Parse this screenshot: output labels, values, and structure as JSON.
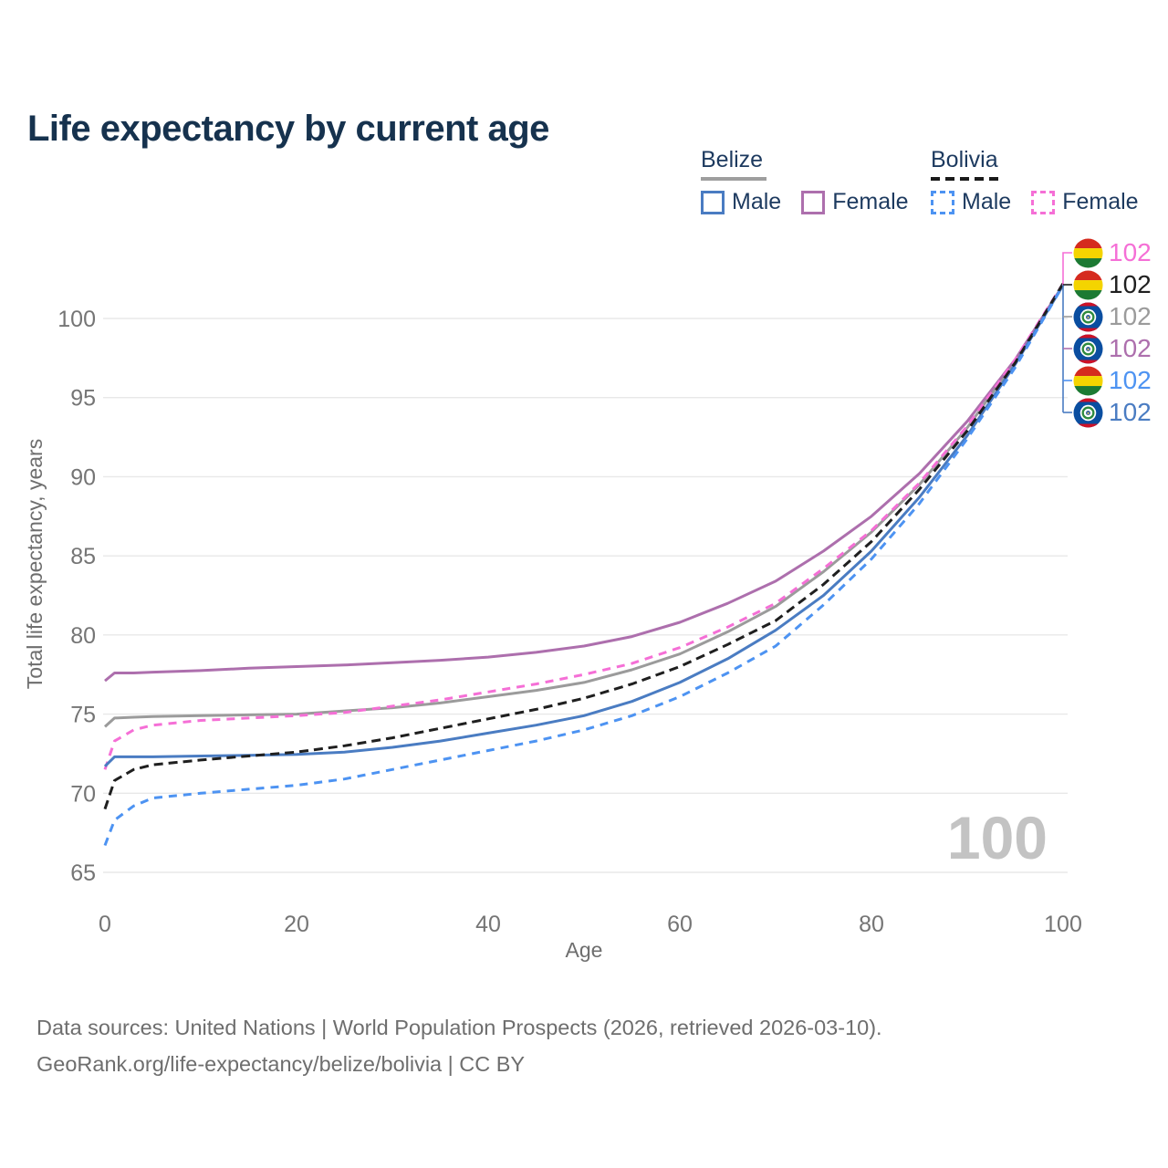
{
  "title": "Life expectancy by current age",
  "legend": {
    "groups": [
      {
        "country": "Belize",
        "underline": "solid",
        "items": [
          {
            "label": "Male",
            "series": "belize_male"
          },
          {
            "label": "Female",
            "series": "belize_female"
          }
        ]
      },
      {
        "country": "Bolivia",
        "underline": "dashed",
        "items": [
          {
            "label": "Male",
            "series": "bolivia_male"
          },
          {
            "label": "Female",
            "series": "bolivia_female"
          }
        ]
      }
    ]
  },
  "chart_data": {
    "type": "line",
    "title": "Life expectancy by current age",
    "xlabel": "Age",
    "ylabel": "Total life expectancy, years",
    "xlim": [
      0,
      100
    ],
    "ylim": [
      65,
      103
    ],
    "x_ticks": [
      0,
      20,
      40,
      60,
      80,
      100
    ],
    "y_ticks": [
      65,
      70,
      75,
      80,
      85,
      90,
      95,
      100
    ],
    "grid": "horizontal",
    "gridline_color": "#e8e8e8",
    "tick_label_color": "#757575",
    "axis_title_color": "#6e6e6e",
    "watermark": "100",
    "watermark_color": "#c3c3c3",
    "ages": [
      0,
      1,
      3,
      5,
      10,
      15,
      20,
      25,
      30,
      35,
      40,
      45,
      50,
      55,
      60,
      65,
      70,
      75,
      80,
      85,
      90,
      95,
      100
    ],
    "series": [
      {
        "id": "belize_total",
        "name": "Belize",
        "country": "Belize",
        "sex": "total",
        "color": "#9b9b9b",
        "dash": null,
        "values": [
          74.2,
          74.75,
          74.8,
          74.85,
          74.9,
          74.95,
          75.0,
          75.2,
          75.4,
          75.7,
          76.1,
          76.5,
          77.0,
          77.8,
          78.8,
          80.2,
          81.8,
          84.0,
          86.5,
          89.5,
          93.1,
          97.3,
          102.1
        ]
      },
      {
        "id": "belize_female",
        "name": "Belize Female",
        "country": "Belize",
        "sex": "female",
        "color": "#ad6fad",
        "dash": null,
        "values": [
          77.1,
          77.6,
          77.6,
          77.65,
          77.75,
          77.9,
          78.0,
          78.1,
          78.25,
          78.4,
          78.6,
          78.9,
          79.3,
          79.9,
          80.8,
          82.0,
          83.4,
          85.3,
          87.5,
          90.2,
          93.5,
          97.4,
          102.1
        ]
      },
      {
        "id": "bolivia_female",
        "name": "Bolivia Female",
        "country": "Bolivia",
        "sex": "female",
        "color": "#f56fd6",
        "dash": "9 7",
        "values": [
          71.5,
          73.3,
          74.0,
          74.3,
          74.6,
          74.75,
          74.9,
          75.1,
          75.5,
          75.9,
          76.4,
          76.9,
          77.5,
          78.2,
          79.2,
          80.5,
          82.0,
          84.2,
          86.6,
          89.6,
          93.2,
          97.4,
          102.2
        ]
      },
      {
        "id": "belize_male",
        "name": "Belize Male",
        "country": "Belize",
        "sex": "male",
        "color": "#4a7cc2",
        "dash": null,
        "values": [
          71.7,
          72.3,
          72.3,
          72.3,
          72.35,
          72.4,
          72.45,
          72.6,
          72.9,
          73.3,
          73.8,
          74.3,
          74.9,
          75.8,
          77.0,
          78.5,
          80.3,
          82.5,
          85.3,
          88.7,
          92.6,
          97.1,
          102.1
        ]
      },
      {
        "id": "bolivia_total",
        "name": "Bolivia",
        "country": "Bolivia",
        "sex": "total",
        "color": "#1f1f1f",
        "dash": "10 6",
        "values": [
          69.0,
          70.8,
          71.5,
          71.8,
          72.1,
          72.35,
          72.6,
          73.0,
          73.5,
          74.1,
          74.7,
          75.3,
          76.0,
          76.9,
          78.0,
          79.4,
          80.9,
          83.2,
          85.9,
          89.2,
          92.9,
          97.2,
          102.2
        ]
      },
      {
        "id": "bolivia_male",
        "name": "Bolivia Male",
        "country": "Bolivia",
        "sex": "male",
        "color": "#4d93f2",
        "dash": "9 7",
        "values": [
          66.7,
          68.3,
          69.2,
          69.7,
          70.0,
          70.25,
          70.5,
          70.9,
          71.5,
          72.1,
          72.7,
          73.3,
          74.0,
          74.9,
          76.1,
          77.6,
          79.3,
          81.9,
          84.8,
          88.3,
          92.4,
          96.9,
          102.1
        ]
      }
    ],
    "end_labels": [
      {
        "series": "bolivia_female",
        "value": "102",
        "flag": "bolivia"
      },
      {
        "series": "bolivia_total",
        "value": "102",
        "flag": "bolivia"
      },
      {
        "series": "belize_total",
        "value": "102",
        "flag": "belize"
      },
      {
        "series": "belize_female",
        "value": "102",
        "flag": "belize"
      },
      {
        "series": "bolivia_male",
        "value": "102",
        "flag": "bolivia"
      },
      {
        "series": "belize_male",
        "value": "102",
        "flag": "belize"
      }
    ]
  },
  "footer": {
    "line1": "Data sources: United Nations | World Population Prospects (2026, retrieved 2026-03-10).",
    "line2": "GeoRank.org/life-expectancy/belize/bolivia | CC BY"
  }
}
